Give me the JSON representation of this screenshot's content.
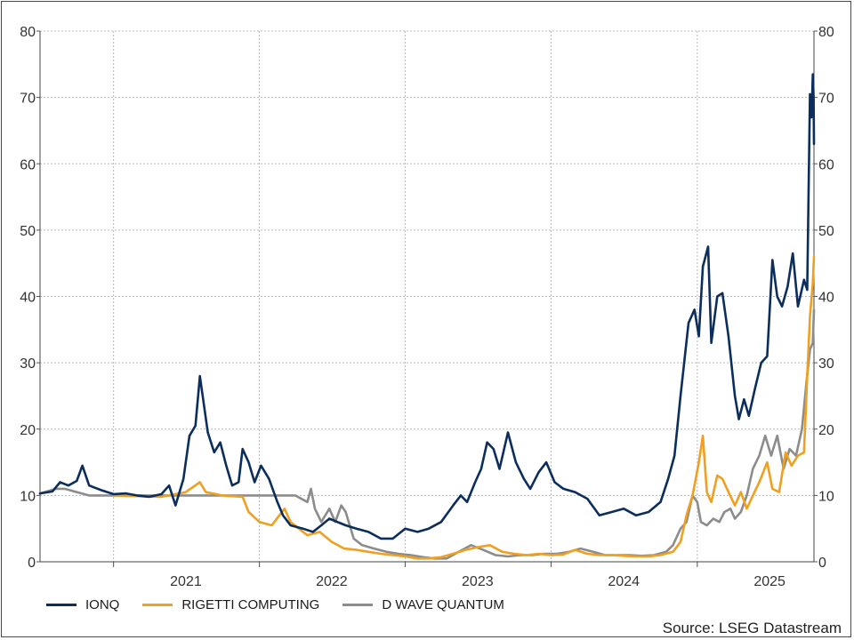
{
  "chart_data": {
    "type": "line",
    "title": "",
    "xlabel": "",
    "ylabel": "",
    "ylim": [
      0,
      80
    ],
    "yticks": [
      0,
      10,
      20,
      30,
      40,
      50,
      60,
      70,
      80
    ],
    "xlim": [
      "2020-07-01",
      "2025-10-20"
    ],
    "x_tick_labels": [
      "2021",
      "2022",
      "2023",
      "2024",
      "2025"
    ],
    "grid": true,
    "legend_position": "bottom-left",
    "source": "Source: LSEG Datastream",
    "series": [
      {
        "name": "IONQ",
        "color": "#0b2e5c",
        "points": [
          [
            "2020-07-01",
            10.3
          ],
          [
            "2020-08-01",
            10.6
          ],
          [
            "2020-08-20",
            12.0
          ],
          [
            "2020-09-10",
            11.5
          ],
          [
            "2020-10-01",
            12.2
          ],
          [
            "2020-10-15",
            14.5
          ],
          [
            "2020-11-01",
            11.5
          ],
          [
            "2020-12-01",
            10.8
          ],
          [
            "2021-01-01",
            10.2
          ],
          [
            "2021-02-01",
            10.3
          ],
          [
            "2021-03-01",
            10.0
          ],
          [
            "2021-04-01",
            9.8
          ],
          [
            "2021-05-01",
            10.2
          ],
          [
            "2021-05-20",
            11.5
          ],
          [
            "2021-06-05",
            8.5
          ],
          [
            "2021-06-25",
            12.5
          ],
          [
            "2021-07-10",
            19.0
          ],
          [
            "2021-07-25",
            20.5
          ],
          [
            "2021-08-05",
            28.0
          ],
          [
            "2021-08-25",
            19.5
          ],
          [
            "2021-09-10",
            16.5
          ],
          [
            "2021-09-25",
            18.0
          ],
          [
            "2021-10-10",
            14.5
          ],
          [
            "2021-10-25",
            11.5
          ],
          [
            "2021-11-10",
            12.0
          ],
          [
            "2021-11-20",
            17.0
          ],
          [
            "2021-12-05",
            15.0
          ],
          [
            "2021-12-20",
            12.0
          ],
          [
            "2022-01-05",
            14.5
          ],
          [
            "2022-01-25",
            12.5
          ],
          [
            "2022-02-15",
            9.0
          ],
          [
            "2022-03-01",
            7.0
          ],
          [
            "2022-03-20",
            5.5
          ],
          [
            "2022-04-20",
            5.0
          ],
          [
            "2022-05-15",
            4.5
          ],
          [
            "2022-06-05",
            5.5
          ],
          [
            "2022-06-25",
            6.5
          ],
          [
            "2022-07-15",
            6.0
          ],
          [
            "2022-08-05",
            5.5
          ],
          [
            "2022-09-01",
            5.0
          ],
          [
            "2022-10-01",
            4.5
          ],
          [
            "2022-11-01",
            3.5
          ],
          [
            "2022-12-01",
            3.5
          ],
          [
            "2023-01-01",
            5.0
          ],
          [
            "2023-02-01",
            4.5
          ],
          [
            "2023-03-01",
            5.0
          ],
          [
            "2023-04-01",
            6.0
          ],
          [
            "2023-05-01",
            8.5
          ],
          [
            "2023-05-20",
            10.0
          ],
          [
            "2023-06-05",
            9.0
          ],
          [
            "2023-06-25",
            12.0
          ],
          [
            "2023-07-10",
            14.0
          ],
          [
            "2023-07-25",
            18.0
          ],
          [
            "2023-08-10",
            17.0
          ],
          [
            "2023-08-25",
            14.0
          ],
          [
            "2023-09-15",
            19.5
          ],
          [
            "2023-10-05",
            15.0
          ],
          [
            "2023-10-25",
            12.5
          ],
          [
            "2023-11-10",
            11.0
          ],
          [
            "2023-12-01",
            13.5
          ],
          [
            "2023-12-20",
            15.0
          ],
          [
            "2024-01-10",
            12.0
          ],
          [
            "2024-02-01",
            11.0
          ],
          [
            "2024-03-01",
            10.5
          ],
          [
            "2024-04-01",
            9.5
          ],
          [
            "2024-05-01",
            7.0
          ],
          [
            "2024-06-01",
            7.5
          ],
          [
            "2024-07-01",
            8.0
          ],
          [
            "2024-08-01",
            7.0
          ],
          [
            "2024-09-01",
            7.5
          ],
          [
            "2024-10-01",
            9.0
          ],
          [
            "2024-10-20",
            12.5
          ],
          [
            "2024-11-05",
            16.0
          ],
          [
            "2024-11-20",
            25.0
          ],
          [
            "2024-12-10",
            36.0
          ],
          [
            "2024-12-25",
            38.0
          ],
          [
            "2025-01-05",
            34.0
          ],
          [
            "2025-01-15",
            44.5
          ],
          [
            "2025-01-28",
            47.5
          ],
          [
            "2025-02-05",
            33.0
          ],
          [
            "2025-02-20",
            40.0
          ],
          [
            "2025-03-05",
            40.5
          ],
          [
            "2025-03-20",
            34.0
          ],
          [
            "2025-04-05",
            25.0
          ],
          [
            "2025-04-15",
            21.5
          ],
          [
            "2025-04-28",
            24.5
          ],
          [
            "2025-05-10",
            22.0
          ],
          [
            "2025-05-25",
            26.0
          ],
          [
            "2025-06-10",
            30.0
          ],
          [
            "2025-06-25",
            31.0
          ],
          [
            "2025-07-08",
            45.5
          ],
          [
            "2025-07-20",
            40.0
          ],
          [
            "2025-08-01",
            38.5
          ],
          [
            "2025-08-15",
            41.5
          ],
          [
            "2025-08-28",
            46.5
          ],
          [
            "2025-09-10",
            38.5
          ],
          [
            "2025-09-25",
            42.5
          ],
          [
            "2025-10-03",
            41.0
          ],
          [
            "2025-10-10",
            70.5
          ],
          [
            "2025-10-14",
            67.0
          ],
          [
            "2025-10-17",
            73.5
          ],
          [
            "2025-10-19",
            70.0
          ],
          [
            "2025-10-20",
            63.0
          ]
        ]
      },
      {
        "name": "RIGETTI COMPUTING",
        "color": "#f0a020",
        "points": [
          [
            "2021-01-01",
            10.0
          ],
          [
            "2021-05-01",
            9.8
          ],
          [
            "2021-07-01",
            10.5
          ],
          [
            "2021-08-05",
            12.0
          ],
          [
            "2021-08-20",
            10.5
          ],
          [
            "2021-10-01",
            10.0
          ],
          [
            "2021-11-20",
            9.8
          ],
          [
            "2021-12-05",
            7.5
          ],
          [
            "2022-01-01",
            6.0
          ],
          [
            "2022-02-01",
            5.5
          ],
          [
            "2022-02-20",
            7.0
          ],
          [
            "2022-03-05",
            8.0
          ],
          [
            "2022-03-20",
            6.0
          ],
          [
            "2022-04-10",
            5.0
          ],
          [
            "2022-05-01",
            4.0
          ],
          [
            "2022-06-01",
            4.5
          ],
          [
            "2022-07-01",
            3.0
          ],
          [
            "2022-08-01",
            2.0
          ],
          [
            "2022-09-01",
            1.8
          ],
          [
            "2022-10-01",
            1.5
          ],
          [
            "2022-11-01",
            1.2
          ],
          [
            "2022-12-01",
            1.0
          ],
          [
            "2023-01-01",
            0.8
          ],
          [
            "2023-02-01",
            0.5
          ],
          [
            "2023-03-01",
            0.5
          ],
          [
            "2023-04-01",
            0.7
          ],
          [
            "2023-05-01",
            1.2
          ],
          [
            "2023-06-01",
            1.8
          ],
          [
            "2023-07-01",
            2.2
          ],
          [
            "2023-08-01",
            2.5
          ],
          [
            "2023-09-01",
            1.5
          ],
          [
            "2023-10-01",
            1.2
          ],
          [
            "2023-11-01",
            1.0
          ],
          [
            "2023-12-01",
            1.2
          ],
          [
            "2024-01-01",
            1.0
          ],
          [
            "2024-02-01",
            1.1
          ],
          [
            "2024-03-01",
            1.8
          ],
          [
            "2024-04-01",
            1.2
          ],
          [
            "2024-05-01",
            1.0
          ],
          [
            "2024-06-01",
            1.0
          ],
          [
            "2024-07-01",
            0.9
          ],
          [
            "2024-08-01",
            0.8
          ],
          [
            "2024-09-01",
            0.8
          ],
          [
            "2024-10-01",
            1.0
          ],
          [
            "2024-11-01",
            1.5
          ],
          [
            "2024-11-20",
            3.0
          ],
          [
            "2024-12-05",
            7.0
          ],
          [
            "2024-12-20",
            10.0
          ],
          [
            "2025-01-05",
            15.0
          ],
          [
            "2025-01-15",
            19.0
          ],
          [
            "2025-01-25",
            10.5
          ],
          [
            "2025-02-05",
            9.0
          ],
          [
            "2025-02-20",
            13.0
          ],
          [
            "2025-03-05",
            12.5
          ],
          [
            "2025-03-20",
            10.5
          ],
          [
            "2025-04-05",
            8.5
          ],
          [
            "2025-04-20",
            10.5
          ],
          [
            "2025-05-05",
            8.0
          ],
          [
            "2025-05-20",
            10.0
          ],
          [
            "2025-06-05",
            12.0
          ],
          [
            "2025-06-25",
            15.0
          ],
          [
            "2025-07-08",
            11.0
          ],
          [
            "2025-07-25",
            10.5
          ],
          [
            "2025-08-10",
            16.5
          ],
          [
            "2025-08-25",
            14.5
          ],
          [
            "2025-09-10",
            16.0
          ],
          [
            "2025-09-25",
            16.5
          ],
          [
            "2025-10-03",
            28.0
          ],
          [
            "2025-10-10",
            37.0
          ],
          [
            "2025-10-17",
            42.0
          ],
          [
            "2025-10-20",
            46.0
          ]
        ]
      },
      {
        "name": "D WAVE QUANTUM",
        "color": "#8c8c8c",
        "points": [
          [
            "2020-07-01",
            10.3
          ],
          [
            "2020-08-10",
            11.0
          ],
          [
            "2020-09-01",
            11.0
          ],
          [
            "2020-10-01",
            10.5
          ],
          [
            "2020-11-01",
            10.0
          ],
          [
            "2021-01-01",
            10.0
          ],
          [
            "2021-04-01",
            10.0
          ],
          [
            "2021-07-01",
            10.0
          ],
          [
            "2021-10-01",
            10.0
          ],
          [
            "2022-01-01",
            10.0
          ],
          [
            "2022-04-01",
            10.0
          ],
          [
            "2022-05-01",
            9.0
          ],
          [
            "2022-05-10",
            11.0
          ],
          [
            "2022-05-20",
            8.0
          ],
          [
            "2022-06-05",
            6.0
          ],
          [
            "2022-06-25",
            8.0
          ],
          [
            "2022-07-10",
            6.0
          ],
          [
            "2022-07-25",
            8.5
          ],
          [
            "2022-08-05",
            7.5
          ],
          [
            "2022-08-25",
            3.5
          ],
          [
            "2022-09-15",
            2.5
          ],
          [
            "2022-10-15",
            2.0
          ],
          [
            "2022-11-15",
            1.5
          ],
          [
            "2022-12-15",
            1.2
          ],
          [
            "2023-01-15",
            1.0
          ],
          [
            "2023-02-15",
            0.7
          ],
          [
            "2023-03-15",
            0.5
          ],
          [
            "2023-04-15",
            0.5
          ],
          [
            "2023-05-15",
            1.5
          ],
          [
            "2023-06-15",
            2.5
          ],
          [
            "2023-07-15",
            1.8
          ],
          [
            "2023-08-15",
            1.0
          ],
          [
            "2023-09-15",
            0.8
          ],
          [
            "2023-10-15",
            1.0
          ],
          [
            "2023-11-15",
            1.0
          ],
          [
            "2023-12-15",
            1.2
          ],
          [
            "2024-01-15",
            1.2
          ],
          [
            "2024-02-15",
            1.5
          ],
          [
            "2024-03-15",
            2.0
          ],
          [
            "2024-04-15",
            1.5
          ],
          [
            "2024-05-15",
            1.0
          ],
          [
            "2024-06-15",
            1.0
          ],
          [
            "2024-07-15",
            1.0
          ],
          [
            "2024-08-15",
            0.9
          ],
          [
            "2024-09-15",
            1.0
          ],
          [
            "2024-10-15",
            1.5
          ],
          [
            "2024-11-01",
            2.5
          ],
          [
            "2024-11-20",
            5.0
          ],
          [
            "2024-12-05",
            6.0
          ],
          [
            "2024-12-20",
            10.0
          ],
          [
            "2025-01-01",
            9.0
          ],
          [
            "2025-01-10",
            6.0
          ],
          [
            "2025-01-25",
            5.5
          ],
          [
            "2025-02-10",
            6.5
          ],
          [
            "2025-02-25",
            6.0
          ],
          [
            "2025-03-10",
            7.5
          ],
          [
            "2025-03-25",
            8.0
          ],
          [
            "2025-04-05",
            6.5
          ],
          [
            "2025-04-20",
            7.5
          ],
          [
            "2025-05-05",
            10.0
          ],
          [
            "2025-05-20",
            14.0
          ],
          [
            "2025-06-05",
            16.0
          ],
          [
            "2025-06-20",
            19.0
          ],
          [
            "2025-07-05",
            16.0
          ],
          [
            "2025-07-20",
            19.0
          ],
          [
            "2025-08-05",
            14.0
          ],
          [
            "2025-08-20",
            17.0
          ],
          [
            "2025-09-05",
            16.0
          ],
          [
            "2025-09-20",
            20.0
          ],
          [
            "2025-10-01",
            27.0
          ],
          [
            "2025-10-10",
            32.0
          ],
          [
            "2025-10-17",
            33.0
          ],
          [
            "2025-10-20",
            38.0
          ]
        ]
      }
    ]
  }
}
